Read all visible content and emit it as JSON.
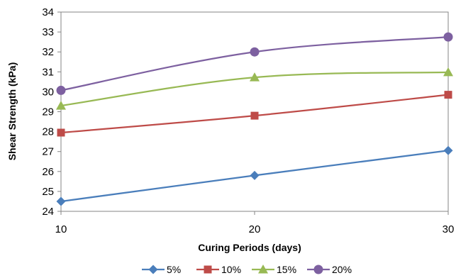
{
  "chart_data": {
    "type": "line",
    "xlabel": "Curing Periods (days)",
    "ylabel": "Shear Strength (kPa)",
    "x": [
      10,
      20,
      30
    ],
    "x_ticks": [
      "10",
      "20",
      "30"
    ],
    "ylim": [
      24,
      34
    ],
    "y_ticks": [
      "24",
      "25",
      "26",
      "27",
      "28",
      "29",
      "30",
      "31",
      "32",
      "33",
      "34"
    ],
    "grid": false,
    "smooth": true,
    "legend_position": "bottom",
    "series": [
      {
        "name": "5%",
        "values": [
          24.5,
          25.8,
          27.05
        ],
        "color": "#4a7ebb",
        "marker": "diamond"
      },
      {
        "name": "10%",
        "values": [
          27.95,
          28.8,
          29.85
        ],
        "color": "#be4b48",
        "marker": "square"
      },
      {
        "name": "15%",
        "values": [
          29.3,
          30.72,
          30.98
        ],
        "color": "#98b954",
        "marker": "triangle"
      },
      {
        "name": "20%",
        "values": [
          30.07,
          32.0,
          32.75
        ],
        "color": "#7d60a0",
        "marker": "circle"
      }
    ]
  }
}
